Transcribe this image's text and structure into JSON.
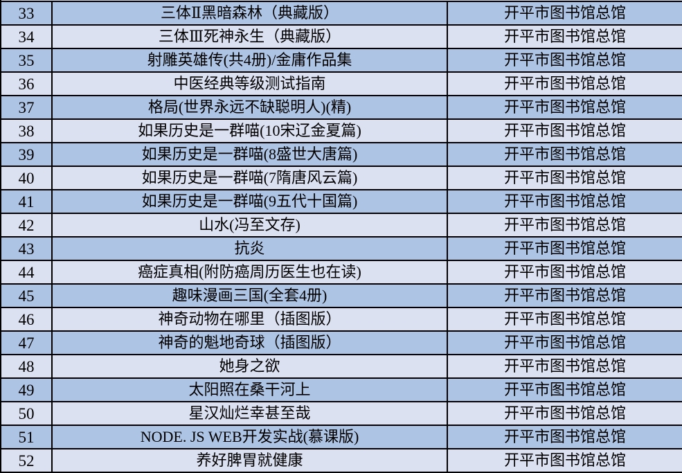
{
  "colors": {
    "row_dark": "#aec4e4",
    "row_light": "#dce1f2",
    "border": "#000000",
    "text": "#000000"
  },
  "table": {
    "rows": [
      {
        "no": "33",
        "title": "三体Ⅱ黑暗森林（典藏版）",
        "library": "开平市图书馆总馆"
      },
      {
        "no": "34",
        "title": "三体Ⅲ死神永生（典藏版）",
        "library": "开平市图书馆总馆"
      },
      {
        "no": "35",
        "title": "射雕英雄传(共4册)/金庸作品集",
        "library": "开平市图书馆总馆"
      },
      {
        "no": "36",
        "title": "中医经典等级测试指南",
        "library": "开平市图书馆总馆"
      },
      {
        "no": "37",
        "title": "格局(世界永远不缺聪明人)(精)",
        "library": "开平市图书馆总馆"
      },
      {
        "no": "38",
        "title": "如果历史是一群喵(10宋辽金夏篇)",
        "library": "开平市图书馆总馆"
      },
      {
        "no": "39",
        "title": "如果历史是一群喵(8盛世大唐篇)",
        "library": "开平市图书馆总馆"
      },
      {
        "no": "40",
        "title": "如果历史是一群喵(7隋唐风云篇)",
        "library": "开平市图书馆总馆"
      },
      {
        "no": "41",
        "title": "如果历史是一群喵(9五代十国篇)",
        "library": "开平市图书馆总馆"
      },
      {
        "no": "42",
        "title": "山水(冯至文存)",
        "library": "开平市图书馆总馆"
      },
      {
        "no": "43",
        "title": "抗炎",
        "library": "开平市图书馆总馆"
      },
      {
        "no": "44",
        "title": "癌症真相(附防癌周历医生也在读)",
        "library": "开平市图书馆总馆"
      },
      {
        "no": "45",
        "title": "趣味漫画三国(全套4册)",
        "library": "开平市图书馆总馆"
      },
      {
        "no": "46",
        "title": "神奇动物在哪里（插图版）",
        "library": "开平市图书馆总馆"
      },
      {
        "no": "47",
        "title": "神奇的魁地奇球（插图版）",
        "library": "开平市图书馆总馆"
      },
      {
        "no": "48",
        "title": "她身之欲",
        "library": "开平市图书馆总馆"
      },
      {
        "no": "49",
        "title": "太阳照在桑干河上",
        "library": "开平市图书馆总馆"
      },
      {
        "no": "50",
        "title": "星汉灿烂幸甚至哉",
        "library": "开平市图书馆总馆"
      },
      {
        "no": "51",
        "title": "NODE. JS WEB开发实战(慕课版)",
        "library": "开平市图书馆总馆"
      },
      {
        "no": "52",
        "title": "养好脾胃就健康",
        "library": "开平市图书馆总馆"
      }
    ]
  }
}
